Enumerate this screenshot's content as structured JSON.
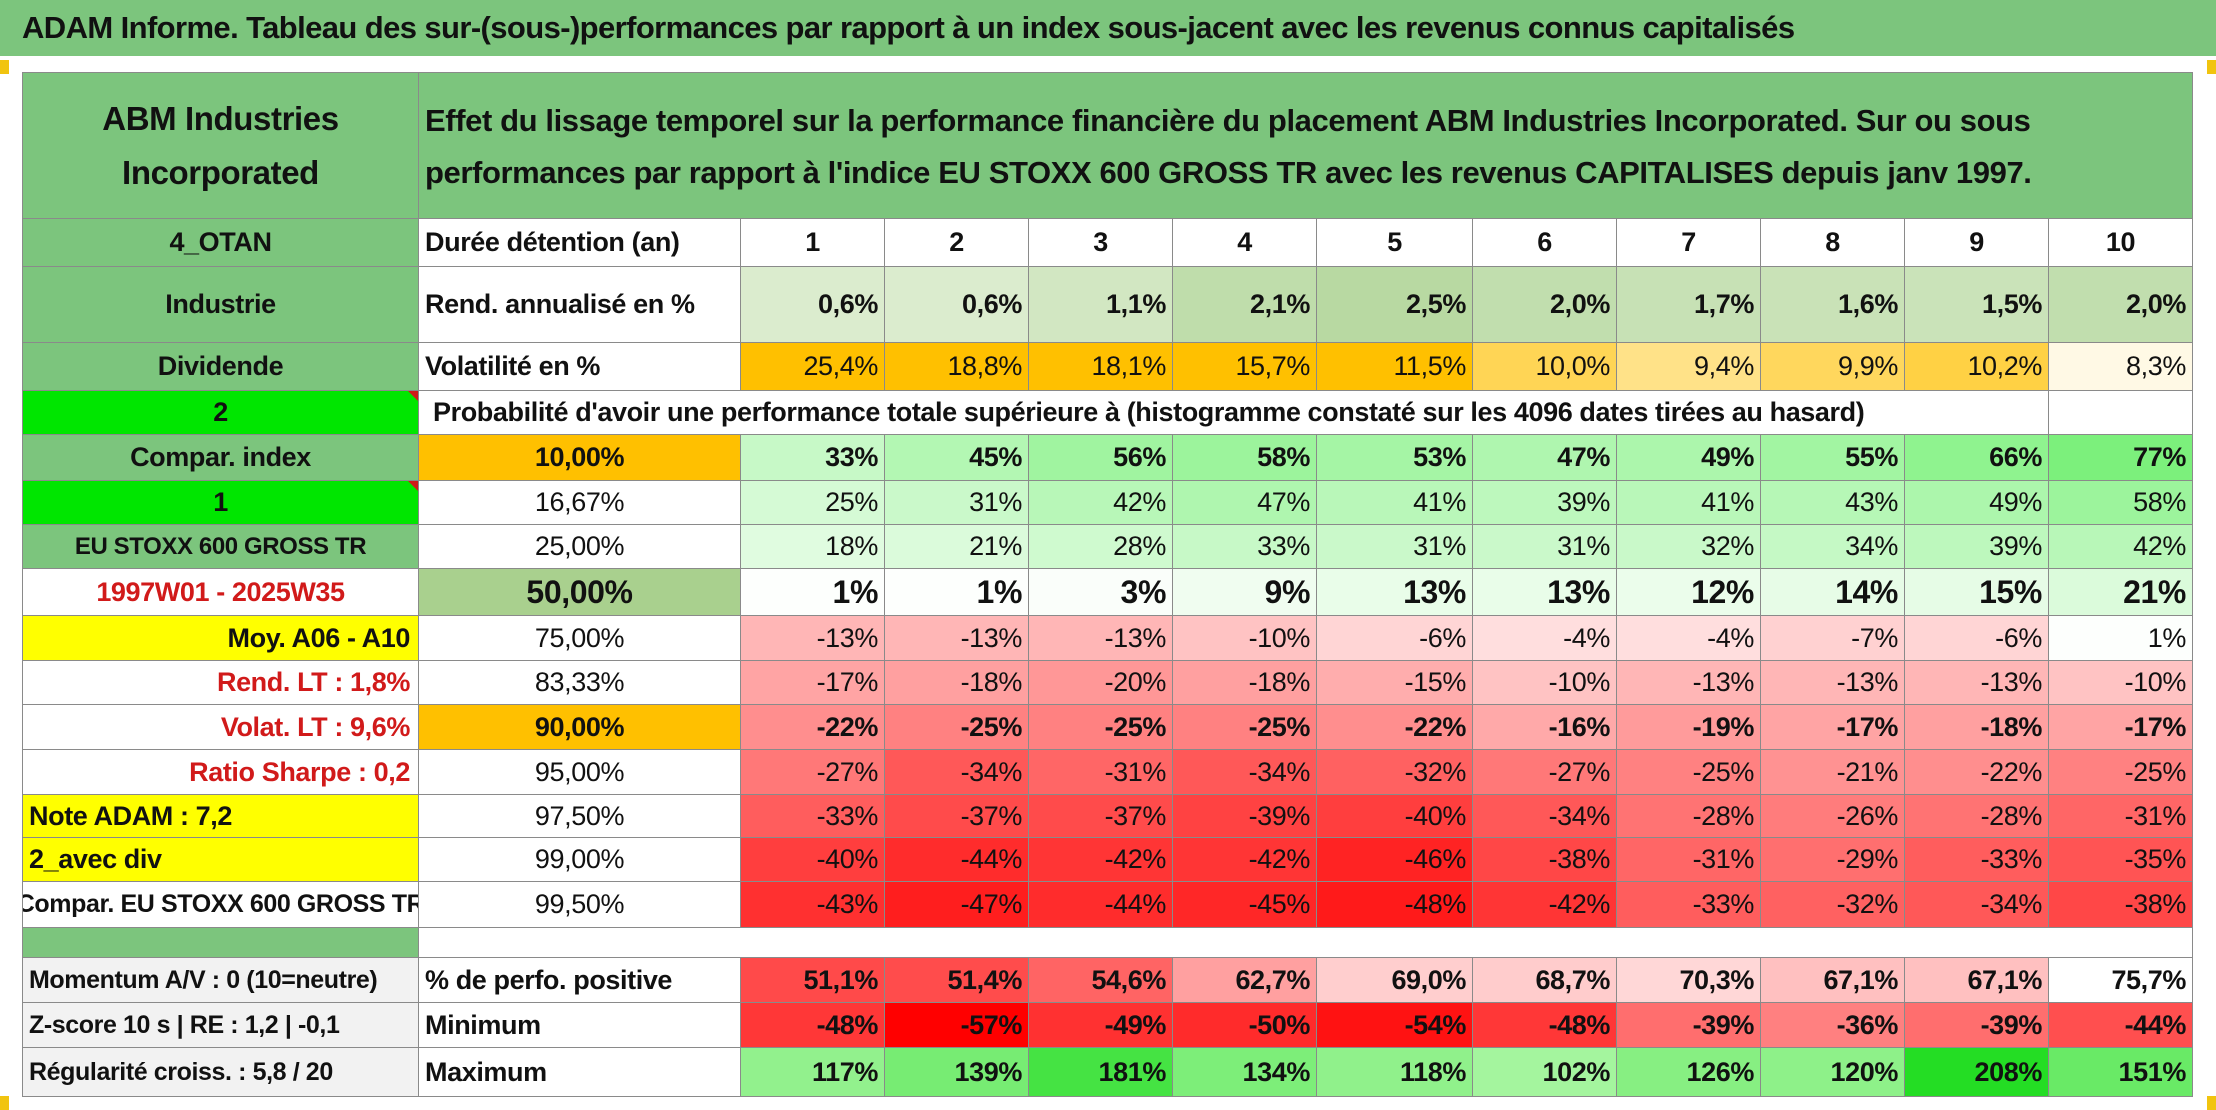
{
  "title": "ADAM Informe. Tableau des sur-(sous-)performances par rapport à un index sous-jacent avec les revenus connus capitalisés",
  "colors": {
    "header_green": "#7cc57d",
    "bright_green": "#00e600",
    "yellow": "#ffff00",
    "orange": "#ffc000",
    "light_green": "#c6e0b4"
  },
  "left": {
    "company": "ABM Industries Incorporated",
    "code": "4_OTAN",
    "sector": "Industrie",
    "dividend": "Dividende",
    "val2": "2",
    "compar_index": "Compar. index",
    "val1": "1",
    "index_name": "EU STOXX 600 GROSS TR",
    "period": "1997W01 - 2025W35",
    "moy": "Moy. A06 - A10",
    "rend_lt": "Rend. LT :   1,8%",
    "volat_lt": "Volat. LT :   9,6%",
    "sharpe": "Ratio Sharpe :   0,2",
    "note": "Note ADAM : 7,2",
    "avec_div": "2_avec div",
    "compar_full": "Compar. EU STOXX 600 GROSS TR",
    "momentum": "Momentum A/V : 0 (10=neutre)",
    "zscore": "Z-score 10 s | RE : 1,2 | -0,1",
    "regularite": "Régularité croiss. : 5,8 / 20"
  },
  "header_text": "Effet du lissage temporel sur la performance financière du placement ABM Industries Incorporated. Sur ou sous performances par rapport à l'indice EU STOXX 600 GROSS TR avec les revenus CAPITALISES depuis janv 1997.",
  "rows": {
    "duree": {
      "label": "Durée détention (an)",
      "values": [
        "1",
        "2",
        "3",
        "4",
        "5",
        "6",
        "7",
        "8",
        "9",
        "10"
      ]
    },
    "rend": {
      "label": "Rend. annualisé en %",
      "values": [
        "0,6%",
        "0,6%",
        "1,1%",
        "2,1%",
        "2,5%",
        "2,0%",
        "1,7%",
        "1,6%",
        "1,5%",
        "2,0%"
      ]
    },
    "vol": {
      "label": "Volatilité en %",
      "values": [
        "25,4%",
        "18,8%",
        "18,1%",
        "15,7%",
        "11,5%",
        "10,0%",
        "9,4%",
        "9,9%",
        "10,2%",
        "8,3%"
      ]
    }
  },
  "prob_header": "Probabilité d'avoir une performance totale supérieure à (histogramme constaté sur les 4096 dates tirées au hasard)",
  "prob_rows": [
    {
      "pct": "10,00%",
      "values": [
        "33%",
        "45%",
        "56%",
        "58%",
        "53%",
        "47%",
        "49%",
        "55%",
        "66%",
        "77%"
      ]
    },
    {
      "pct": "16,67%",
      "values": [
        "25%",
        "31%",
        "42%",
        "47%",
        "41%",
        "39%",
        "41%",
        "43%",
        "49%",
        "58%"
      ]
    },
    {
      "pct": "25,00%",
      "values": [
        "18%",
        "21%",
        "28%",
        "33%",
        "31%",
        "31%",
        "32%",
        "34%",
        "39%",
        "42%"
      ]
    },
    {
      "pct": "50,00%",
      "values": [
        "1%",
        "1%",
        "3%",
        "9%",
        "13%",
        "13%",
        "12%",
        "14%",
        "15%",
        "21%"
      ]
    },
    {
      "pct": "75,00%",
      "values": [
        "-13%",
        "-13%",
        "-13%",
        "-10%",
        "-6%",
        "-4%",
        "-4%",
        "-7%",
        "-6%",
        "1%"
      ]
    },
    {
      "pct": "83,33%",
      "values": [
        "-17%",
        "-18%",
        "-20%",
        "-18%",
        "-15%",
        "-10%",
        "-13%",
        "-13%",
        "-13%",
        "-10%"
      ]
    },
    {
      "pct": "90,00%",
      "values": [
        "-22%",
        "-25%",
        "-25%",
        "-25%",
        "-22%",
        "-16%",
        "-19%",
        "-17%",
        "-18%",
        "-17%"
      ]
    },
    {
      "pct": "95,00%",
      "values": [
        "-27%",
        "-34%",
        "-31%",
        "-34%",
        "-32%",
        "-27%",
        "-25%",
        "-21%",
        "-22%",
        "-25%"
      ]
    },
    {
      "pct": "97,50%",
      "values": [
        "-33%",
        "-37%",
        "-37%",
        "-39%",
        "-40%",
        "-34%",
        "-28%",
        "-26%",
        "-28%",
        "-31%"
      ]
    },
    {
      "pct": "99,00%",
      "values": [
        "-40%",
        "-44%",
        "-42%",
        "-42%",
        "-46%",
        "-38%",
        "-31%",
        "-29%",
        "-33%",
        "-35%"
      ]
    },
    {
      "pct": "99,50%",
      "values": [
        "-43%",
        "-47%",
        "-44%",
        "-45%",
        "-48%",
        "-42%",
        "-33%",
        "-32%",
        "-34%",
        "-38%"
      ]
    }
  ],
  "bottom_rows": [
    {
      "label": "% de perfo. positive",
      "values": [
        "51,1%",
        "51,4%",
        "54,6%",
        "62,7%",
        "69,0%",
        "68,7%",
        "70,3%",
        "67,1%",
        "67,1%",
        "75,7%"
      ]
    },
    {
      "label": "Minimum",
      "values": [
        "-48%",
        "-57%",
        "-49%",
        "-50%",
        "-54%",
        "-48%",
        "-39%",
        "-36%",
        "-39%",
        "-44%"
      ]
    },
    {
      "label": "Maximum",
      "values": [
        "117%",
        "139%",
        "181%",
        "134%",
        "118%",
        "102%",
        "126%",
        "120%",
        "208%",
        "151%"
      ]
    }
  ]
}
